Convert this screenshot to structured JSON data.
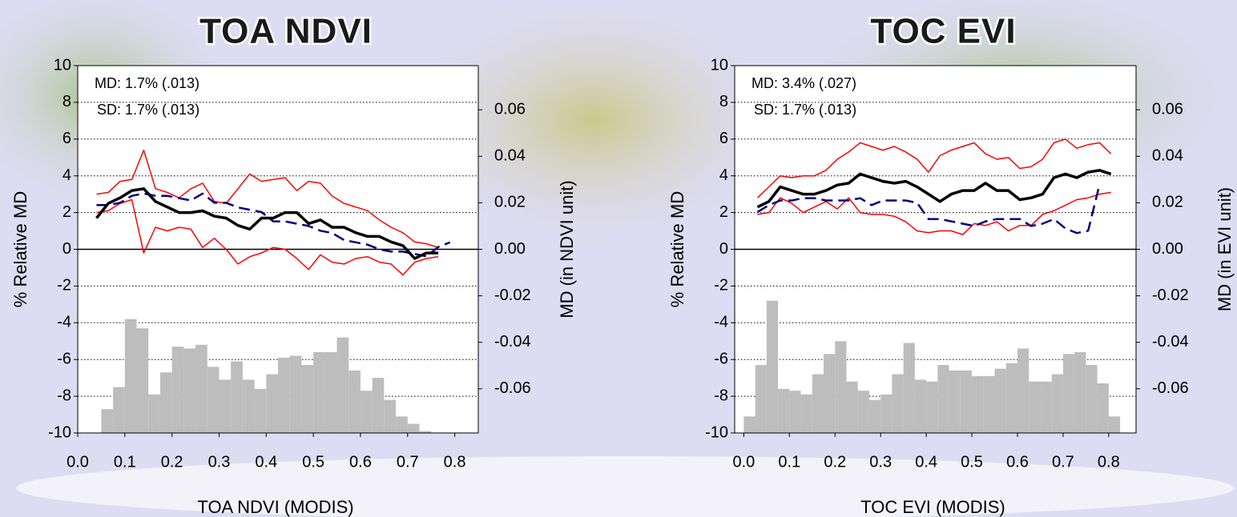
{
  "chart_data": [
    {
      "type": "line",
      "title": "TOA NDVI",
      "xlabel": "TOA NDVI (MODIS)",
      "ylabel": "% Relative MD",
      "y2label": "MD (in NDVI unit)",
      "annotations": [
        "MD: 1.7% (.013)",
        "SD: 1.7% (.013)"
      ],
      "xlim": [
        0,
        0.85
      ],
      "xticks": [
        {
          "value": 0,
          "label": "0.0"
        },
        0.1,
        0.2,
        0.3,
        0.4,
        0.5,
        0.6,
        0.7,
        0.8
      ],
      "ylim": [
        -10,
        10
      ],
      "yticks": [
        -10,
        -8,
        -6,
        -4,
        -2,
        0,
        2,
        4,
        6,
        8,
        10
      ],
      "y2lim": [
        -0.079,
        0.079
      ],
      "y2ticks": [
        -0.06,
        -0.04,
        -0.02,
        {
          "value": 0,
          "label": "0.00"
        },
        0.02,
        0.04,
        0.06
      ],
      "grid": true,
      "histogram": {
        "color": "#bdbdbd",
        "bins": [
          0.05,
          0.075,
          0.1,
          0.125,
          0.15,
          0.175,
          0.2,
          0.225,
          0.25,
          0.275,
          0.3,
          0.325,
          0.35,
          0.375,
          0.4,
          0.425,
          0.45,
          0.475,
          0.5,
          0.525,
          0.55,
          0.575,
          0.6,
          0.625,
          0.65,
          0.675,
          0.7,
          0.725,
          0.75
        ],
        "values": [
          -8.7,
          -7.5,
          -3.8,
          -4.3,
          -7.9,
          -6.7,
          -5.3,
          -5.4,
          -5.2,
          -6.4,
          -7.1,
          -6.1,
          -7.1,
          -7.6,
          -6.8,
          -5.9,
          -5.8,
          -6.3,
          -5.6,
          -5.6,
          -4.8,
          -6.6,
          -7.7,
          -7.0,
          -8.2,
          -9.1,
          -9.5,
          -9.9
        ]
      },
      "series": [
        {
          "color": "#ff0000",
          "width": 1.5,
          "x": [
            0.04,
            0.065,
            0.09,
            0.115,
            0.14,
            0.165,
            0.19,
            0.215,
            0.24,
            0.265,
            0.29,
            0.315,
            0.34,
            0.365,
            0.39,
            0.415,
            0.44,
            0.465,
            0.49,
            0.515,
            0.54,
            0.565,
            0.59,
            0.615,
            0.64,
            0.665,
            0.69,
            0.715,
            0.74,
            0.765
          ],
          "values": [
            3.0,
            3.1,
            3.7,
            3.8,
            5.4,
            3.3,
            3.1,
            2.8,
            3.3,
            3.6,
            2.6,
            2.5,
            3.3,
            4.1,
            3.7,
            3.8,
            3.9,
            3.2,
            3.7,
            3.6,
            2.9,
            2.5,
            2.3,
            2.1,
            1.6,
            1.2,
            0.9,
            0.4,
            0.3,
            0.1
          ]
        },
        {
          "color": "#ff0000",
          "width": 1.5,
          "x": [
            0.04,
            0.065,
            0.09,
            0.115,
            0.14,
            0.165,
            0.19,
            0.215,
            0.24,
            0.265,
            0.29,
            0.315,
            0.34,
            0.365,
            0.39,
            0.415,
            0.44,
            0.465,
            0.49,
            0.515,
            0.54,
            0.565,
            0.59,
            0.615,
            0.64,
            0.665,
            0.69,
            0.715,
            0.74,
            0.765
          ],
          "values": [
            2.0,
            2.1,
            2.5,
            2.7,
            -0.2,
            1.2,
            1.0,
            1.2,
            1.1,
            0.1,
            0.6,
            0.0,
            -0.8,
            -0.4,
            -0.2,
            0.1,
            0.0,
            -0.5,
            -1.1,
            -0.3,
            -0.7,
            -0.8,
            -0.5,
            -0.4,
            -0.7,
            -0.8,
            -1.4,
            -0.7,
            -0.5,
            -0.4
          ]
        },
        {
          "color": "#000080",
          "width": 2.5,
          "linestyle": "dashed",
          "axis": "y2",
          "x": [
            0.04,
            0.065,
            0.09,
            0.115,
            0.14,
            0.165,
            0.19,
            0.215,
            0.24,
            0.265,
            0.29,
            0.315,
            0.34,
            0.365,
            0.39,
            0.415,
            0.44,
            0.465,
            0.49,
            0.515,
            0.54,
            0.565,
            0.59,
            0.615,
            0.64,
            0.665,
            0.69,
            0.715,
            0.74,
            0.765,
            0.79
          ],
          "values": [
            0.019,
            0.019,
            0.02,
            0.023,
            0.024,
            0.023,
            0.023,
            0.022,
            0.021,
            0.024,
            0.02,
            0.02,
            0.018,
            0.017,
            0.016,
            0.012,
            0.012,
            0.011,
            0.01,
            0.008,
            0.007,
            0.004,
            0.003,
            0.002,
            0.0,
            -0.001,
            -0.001,
            -0.002,
            -0.003,
            0.001,
            0.003
          ]
        },
        {
          "color": "#000000",
          "width": 3.5,
          "x": [
            0.04,
            0.065,
            0.09,
            0.115,
            0.14,
            0.165,
            0.19,
            0.215,
            0.24,
            0.265,
            0.29,
            0.315,
            0.34,
            0.365,
            0.39,
            0.415,
            0.44,
            0.465,
            0.49,
            0.515,
            0.54,
            0.565,
            0.59,
            0.615,
            0.64,
            0.665,
            0.69,
            0.715,
            0.74,
            0.765
          ],
          "values": [
            1.7,
            2.5,
            2.8,
            3.2,
            3.3,
            2.6,
            2.3,
            2.0,
            2.0,
            2.1,
            1.8,
            1.7,
            1.3,
            1.1,
            1.7,
            1.7,
            2.0,
            2.0,
            1.4,
            1.6,
            1.2,
            1.2,
            0.9,
            0.7,
            0.7,
            0.4,
            0.2,
            -0.5,
            -0.2,
            -0.2
          ]
        }
      ]
    },
    {
      "type": "line",
      "title": "TOC EVI",
      "xlabel": "TOC EVI (MODIS)",
      "ylabel": "% Relative MD",
      "y2label": "MD (in EVI unit)",
      "annotations": [
        "MD: 3.4% (.027)",
        "SD: 1.7% (.013)"
      ],
      "xlim": [
        -0.02,
        0.86
      ],
      "xticks": [
        {
          "value": 0,
          "label": "0.0"
        },
        0.1,
        0.2,
        0.3,
        0.4,
        0.5,
        0.6,
        0.7,
        0.8
      ],
      "ylim": [
        -10,
        10
      ],
      "yticks": [
        -10,
        -8,
        -6,
        -4,
        -2,
        0,
        2,
        4,
        6,
        8,
        10
      ],
      "y2lim": [
        -0.079,
        0.079
      ],
      "y2ticks": [
        -0.06,
        -0.04,
        -0.02,
        {
          "value": 0,
          "label": "0.00"
        },
        0.02,
        0.04,
        0.06
      ],
      "grid": true,
      "histogram": {
        "color": "#bdbdbd",
        "bins": [
          0,
          0.025,
          0.05,
          0.075,
          0.1,
          0.125,
          0.15,
          0.175,
          0.2,
          0.225,
          0.25,
          0.275,
          0.3,
          0.325,
          0.35,
          0.375,
          0.4,
          0.425,
          0.45,
          0.475,
          0.5,
          0.525,
          0.55,
          0.575,
          0.6,
          0.625,
          0.65,
          0.675,
          0.7,
          0.725,
          0.75,
          0.775,
          0.8,
          0.825
        ],
        "values": [
          -9.1,
          -6.3,
          -2.8,
          -7.6,
          -7.7,
          -7.9,
          -6.8,
          -5.7,
          -5.0,
          -7.2,
          -7.7,
          -8.2,
          -7.9,
          -6.8,
          -5.1,
          -7.1,
          -7.2,
          -6.3,
          -6.6,
          -6.6,
          -6.9,
          -6.9,
          -6.5,
          -6.2,
          -5.4,
          -7.2,
          -7.2,
          -6.8,
          -5.7,
          -5.6,
          -6.3,
          -7.3,
          -9.1
        ]
      },
      "series": [
        {
          "color": "#ff0000",
          "width": 1.5,
          "x": [
            0.03,
            0.055,
            0.08,
            0.105,
            0.13,
            0.155,
            0.18,
            0.205,
            0.23,
            0.255,
            0.28,
            0.305,
            0.33,
            0.355,
            0.38,
            0.405,
            0.43,
            0.455,
            0.48,
            0.505,
            0.53,
            0.555,
            0.58,
            0.605,
            0.63,
            0.655,
            0.68,
            0.705,
            0.73,
            0.755,
            0.78,
            0.805
          ],
          "values": [
            2.8,
            3.4,
            4.0,
            3.9,
            4.0,
            4.0,
            4.3,
            4.9,
            5.3,
            5.8,
            5.6,
            5.4,
            5.6,
            5.3,
            4.9,
            4.2,
            5.1,
            5.4,
            5.6,
            5.8,
            5.2,
            4.9,
            5.0,
            4.4,
            4.5,
            4.9,
            5.8,
            6.0,
            5.5,
            5.7,
            5.8,
            5.2
          ]
        },
        {
          "color": "#ff0000",
          "width": 1.5,
          "x": [
            0.03,
            0.055,
            0.08,
            0.105,
            0.13,
            0.155,
            0.18,
            0.205,
            0.23,
            0.255,
            0.28,
            0.305,
            0.33,
            0.355,
            0.38,
            0.405,
            0.43,
            0.455,
            0.48,
            0.505,
            0.53,
            0.555,
            0.58,
            0.605,
            0.63,
            0.655,
            0.68,
            0.705,
            0.73,
            0.755,
            0.78,
            0.805
          ],
          "values": [
            1.9,
            2.0,
            2.8,
            2.5,
            2.0,
            2.3,
            2.6,
            2.2,
            2.8,
            2.0,
            1.9,
            1.9,
            1.8,
            1.5,
            1.0,
            0.9,
            1.0,
            1.0,
            0.8,
            1.4,
            1.3,
            1.5,
            1.0,
            1.3,
            1.3,
            1.9,
            2.1,
            2.4,
            2.7,
            2.8,
            3.0,
            3.1
          ]
        },
        {
          "color": "#000080",
          "width": 2.5,
          "linestyle": "dashed",
          "axis": "y2",
          "x": [
            0.03,
            0.055,
            0.08,
            0.105,
            0.13,
            0.155,
            0.18,
            0.205,
            0.23,
            0.255,
            0.28,
            0.305,
            0.33,
            0.355,
            0.38,
            0.405,
            0.43,
            0.455,
            0.48,
            0.505,
            0.53,
            0.555,
            0.58,
            0.605,
            0.63,
            0.655,
            0.68,
            0.705,
            0.73,
            0.755,
            0.78
          ],
          "values": [
            0.016,
            0.019,
            0.021,
            0.021,
            0.022,
            0.022,
            0.021,
            0.021,
            0.021,
            0.022,
            0.019,
            0.021,
            0.021,
            0.021,
            0.02,
            0.013,
            0.013,
            0.012,
            0.011,
            0.01,
            0.012,
            0.013,
            0.013,
            0.013,
            0.01,
            0.011,
            0.013,
            0.009,
            0.007,
            0.008,
            0.028
          ]
        },
        {
          "color": "#000000",
          "width": 3.5,
          "x": [
            0.03,
            0.055,
            0.08,
            0.105,
            0.13,
            0.155,
            0.18,
            0.205,
            0.23,
            0.255,
            0.28,
            0.305,
            0.33,
            0.355,
            0.38,
            0.405,
            0.43,
            0.455,
            0.48,
            0.505,
            0.53,
            0.555,
            0.58,
            0.605,
            0.63,
            0.655,
            0.68,
            0.705,
            0.73,
            0.755,
            0.78,
            0.805
          ],
          "values": [
            2.3,
            2.6,
            3.4,
            3.2,
            3.0,
            3.0,
            3.2,
            3.5,
            3.6,
            4.1,
            3.9,
            3.7,
            3.6,
            3.7,
            3.4,
            3.0,
            2.6,
            3.0,
            3.2,
            3.2,
            3.6,
            3.2,
            3.2,
            2.7,
            2.8,
            3.0,
            3.9,
            4.1,
            3.9,
            4.2,
            4.3,
            4.1
          ]
        }
      ]
    }
  ]
}
